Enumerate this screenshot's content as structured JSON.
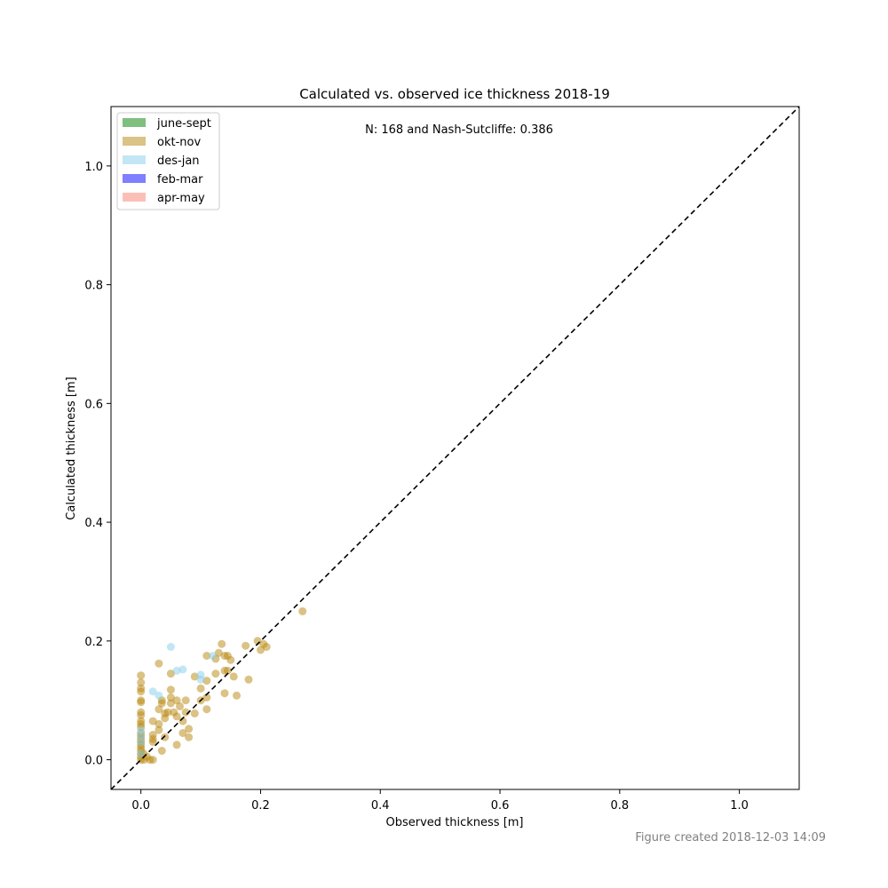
{
  "chart_data": {
    "type": "scatter",
    "title": "Calculated vs. observed ice thickness 2018-19",
    "xlabel": "Observed thickness [m]",
    "ylabel": "Calculated thickness [m]",
    "xlim": [
      -0.05,
      1.1
    ],
    "ylim": [
      -0.05,
      1.1
    ],
    "xticks": [
      0.0,
      0.2,
      0.4,
      0.6,
      0.8,
      1.0
    ],
    "yticks": [
      0.0,
      0.2,
      0.4,
      0.6,
      0.8,
      1.0
    ],
    "x_tick_labels": [
      "0.0",
      "0.2",
      "0.4",
      "0.6",
      "0.8",
      "1.0"
    ],
    "y_tick_labels": [
      "0.0",
      "0.2",
      "0.4",
      "0.6",
      "0.8",
      "1.0"
    ],
    "grid": false,
    "legend_position": "top-left",
    "annotation": "N: 168  and  Nash-Sutcliffe: 0.386",
    "reference_line": "y = x (dashed)",
    "series": [
      {
        "name": "june-sept",
        "color": "#008000",
        "points": []
      },
      {
        "name": "okt-nov",
        "color": "#b8860b",
        "points": [
          [
            0.27,
            0.25
          ],
          [
            0.21,
            0.19
          ],
          [
            0.205,
            0.195
          ],
          [
            0.195,
            0.2
          ],
          [
            0.2,
            0.185
          ],
          [
            0.175,
            0.192
          ],
          [
            0.18,
            0.135
          ],
          [
            0.16,
            0.108
          ],
          [
            0.155,
            0.14
          ],
          [
            0.15,
            0.168
          ],
          [
            0.145,
            0.175
          ],
          [
            0.14,
            0.175
          ],
          [
            0.135,
            0.195
          ],
          [
            0.13,
            0.18
          ],
          [
            0.14,
            0.15
          ],
          [
            0.145,
            0.15
          ],
          [
            0.14,
            0.112
          ],
          [
            0.125,
            0.17
          ],
          [
            0.125,
            0.145
          ],
          [
            0.11,
            0.175
          ],
          [
            0.11,
            0.133
          ],
          [
            0.11,
            0.105
          ],
          [
            0.11,
            0.085
          ],
          [
            0.1,
            0.12
          ],
          [
            0.1,
            0.1
          ],
          [
            0.09,
            0.14
          ],
          [
            0.09,
            0.078
          ],
          [
            0.08,
            0.052
          ],
          [
            0.08,
            0.038
          ],
          [
            0.075,
            0.1
          ],
          [
            0.075,
            0.08
          ],
          [
            0.07,
            0.065
          ],
          [
            0.07,
            0.045
          ],
          [
            0.065,
            0.09
          ],
          [
            0.06,
            0.1
          ],
          [
            0.06,
            0.073
          ],
          [
            0.06,
            0.025
          ],
          [
            0.055,
            0.08
          ],
          [
            0.05,
            0.145
          ],
          [
            0.05,
            0.118
          ],
          [
            0.05,
            0.105
          ],
          [
            0.05,
            0.095
          ],
          [
            0.045,
            0.08
          ],
          [
            0.04,
            0.078
          ],
          [
            0.04,
            0.07
          ],
          [
            0.04,
            0.038
          ],
          [
            0.035,
            0.1
          ],
          [
            0.035,
            0.095
          ],
          [
            0.03,
            0.162
          ],
          [
            0.03,
            0.085
          ],
          [
            0.03,
            0.06
          ],
          [
            0.03,
            0.05
          ],
          [
            0.035,
            0.015
          ],
          [
            0.02,
            0.065
          ],
          [
            0.02,
            0.042
          ],
          [
            0.02,
            0.035
          ],
          [
            0.02,
            0.03
          ],
          [
            0.02,
            0.0
          ],
          [
            0.015,
            0.0
          ],
          [
            0.01,
            0.005
          ],
          [
            0.005,
            0.01
          ],
          [
            0.005,
            0.0
          ],
          [
            0.0,
            0.142
          ],
          [
            0.0,
            0.13
          ],
          [
            0.0,
            0.12
          ],
          [
            0.0,
            0.115
          ],
          [
            0.0,
            0.1
          ],
          [
            0.0,
            0.097
          ],
          [
            0.0,
            0.08
          ],
          [
            0.0,
            0.075
          ],
          [
            0.0,
            0.065
          ],
          [
            0.0,
            0.06
          ],
          [
            0.0,
            0.055
          ],
          [
            0.0,
            0.045
          ],
          [
            0.0,
            0.04
          ],
          [
            0.0,
            0.035
          ],
          [
            0.0,
            0.03
          ],
          [
            0.0,
            0.025
          ],
          [
            0.0,
            0.02
          ],
          [
            0.0,
            0.015
          ],
          [
            0.0,
            0.01
          ],
          [
            0.0,
            0.005
          ],
          [
            0.0,
            0.0
          ]
        ]
      },
      {
        "name": "des-jan",
        "color": "#87ceeb",
        "points": [
          [
            0.05,
            0.19
          ],
          [
            0.07,
            0.152
          ],
          [
            0.06,
            0.15
          ],
          [
            0.1,
            0.143
          ],
          [
            0.12,
            0.175
          ],
          [
            0.02,
            0.115
          ],
          [
            0.03,
            0.108
          ],
          [
            0.1,
            0.135
          ],
          [
            0.0,
            0.05
          ],
          [
            0.0,
            0.04
          ],
          [
            0.0,
            0.03
          ],
          [
            0.0,
            0.01
          ]
        ]
      },
      {
        "name": "feb-mar",
        "color": "#0000ff",
        "points": []
      },
      {
        "name": "apr-may",
        "color": "#fa8072",
        "points": []
      }
    ]
  },
  "footer": "Figure created 2018-12-03 14:09"
}
